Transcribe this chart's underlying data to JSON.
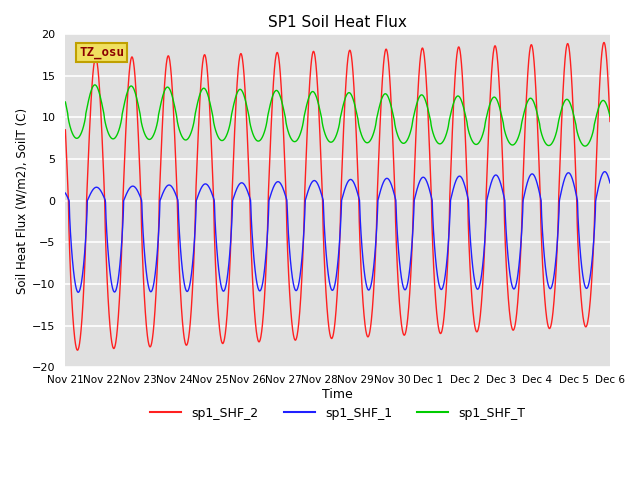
{
  "title": "SP1 Soil Heat Flux",
  "xlabel": "Time",
  "ylabel": "Soil Heat Flux (W/m2), SoilT (C)",
  "ylim": [
    -20,
    20
  ],
  "background_color": "#e0e0e0",
  "grid_color": "white",
  "annotation_text": "TZ_osu",
  "annotation_color": "#8b0000",
  "annotation_bg": "#f0e060",
  "annotation_border": "#c0a000",
  "tick_labels": [
    "Nov 21",
    "Nov 22",
    "Nov 23",
    "Nov 24",
    "Nov 25",
    "Nov 26",
    "Nov 27",
    "Nov 28",
    "Nov 29",
    "Nov 30",
    "Dec 1",
    "Dec 2",
    "Dec 3",
    "Dec 4",
    "Dec 5",
    "Dec 6"
  ],
  "legend_labels": [
    "sp1_SHF_2",
    "sp1_SHF_1",
    "sp1_SHF_T"
  ],
  "line_colors": [
    "#ff2020",
    "#2020ff",
    "#00cc00"
  ],
  "n_days": 15,
  "points_per_day": 144
}
